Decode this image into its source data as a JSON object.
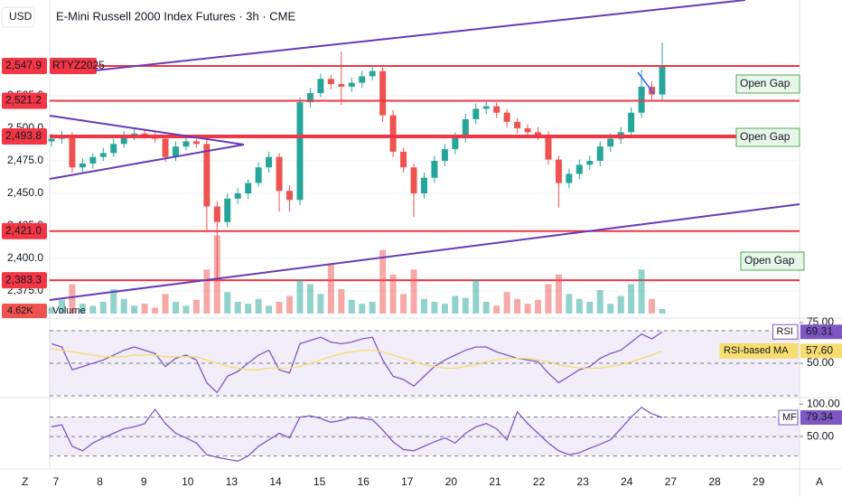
{
  "header": {
    "currency": "USD",
    "title": "E-Mini Russell 2000 Index Futures · 3h · CME"
  },
  "toolbar": {
    "left": "Z",
    "right": "A"
  },
  "time_axis": {
    "labels": [
      "7",
      "8",
      "9",
      "10",
      "13",
      "14",
      "15",
      "16",
      "17",
      "20",
      "21",
      "22",
      "23",
      "24",
      "27",
      "28",
      "29"
    ]
  },
  "chart_data": [
    {
      "type": "candlestick",
      "symbol": "RTYZ2025",
      "up_color": "#26a69a",
      "down_color": "#ef5350",
      "open": [
        2490,
        2492,
        2494,
        2470,
        2473,
        2478,
        2481,
        2488,
        2494,
        2496,
        2495,
        2492,
        2478,
        2486,
        2490,
        2488,
        2440,
        2428,
        2446,
        2450,
        2458,
        2470,
        2478,
        2452,
        2445,
        2520,
        2527,
        2538,
        2534,
        2532,
        2535,
        2540,
        2544,
        2510,
        2482,
        2470,
        2450,
        2462,
        2475,
        2484,
        2493,
        2507,
        2515,
        2517,
        2512,
        2505,
        2500,
        2497,
        2495,
        2476,
        2458,
        2465,
        2472,
        2475,
        2486,
        2492,
        2497,
        2512,
        2532,
        2526
      ],
      "high": [
        2496,
        2498,
        2497,
        2477,
        2481,
        2485,
        2492,
        2498,
        2500,
        2499,
        2498,
        2495,
        2490,
        2494,
        2493,
        2491,
        2444,
        2450,
        2454,
        2461,
        2474,
        2482,
        2481,
        2456,
        2524,
        2531,
        2542,
        2541,
        2559,
        2539,
        2544,
        2548,
        2547,
        2514,
        2485,
        2473,
        2466,
        2479,
        2488,
        2497,
        2511,
        2519,
        2521,
        2520,
        2515,
        2508,
        2503,
        2501,
        2498,
        2479,
        2469,
        2476,
        2479,
        2490,
        2496,
        2501,
        2516,
        2545,
        2536,
        2566
      ],
      "low": [
        2486,
        2488,
        2466,
        2466,
        2469,
        2475,
        2478,
        2485,
        2491,
        2492,
        2489,
        2474,
        2475,
        2483,
        2485,
        2420,
        2383,
        2424,
        2442,
        2446,
        2455,
        2466,
        2436,
        2436,
        2441,
        2516,
        2524,
        2530,
        2518,
        2528,
        2531,
        2537,
        2505,
        2478,
        2466,
        2432,
        2446,
        2458,
        2471,
        2480,
        2489,
        2503,
        2511,
        2508,
        2501,
        2496,
        2493,
        2491,
        2472,
        2439,
        2454,
        2461,
        2468,
        2471,
        2482,
        2488,
        2493,
        2508,
        2522,
        2522
      ],
      "close": [
        2492,
        2494,
        2470,
        2473,
        2478,
        2481,
        2488,
        2494,
        2496,
        2495,
        2492,
        2478,
        2486,
        2490,
        2488,
        2440,
        2428,
        2446,
        2450,
        2458,
        2470,
        2478,
        2452,
        2445,
        2520,
        2527,
        2538,
        2534,
        2532,
        2535,
        2540,
        2544,
        2510,
        2482,
        2470,
        2450,
        2462,
        2475,
        2484,
        2493,
        2507,
        2515,
        2517,
        2512,
        2505,
        2500,
        2497,
        2495,
        2476,
        2458,
        2465,
        2472,
        2475,
        2486,
        2492,
        2497,
        2512,
        2532,
        2526,
        2548
      ],
      "ylim": [
        2355.6,
        2598.6
      ],
      "yticks": [
        {
          "value": 2525,
          "label": "2,525.0"
        },
        {
          "value": 2500,
          "label": "2,500.0"
        },
        {
          "value": 2475,
          "label": "2,475.0"
        },
        {
          "value": 2450,
          "label": "2,450.0"
        },
        {
          "value": 2425,
          "label": "2,425.0"
        },
        {
          "value": 2400,
          "label": "2,400.0"
        },
        {
          "value": 2375,
          "label": "2,375.0"
        }
      ],
      "grid": true,
      "levels": [
        {
          "value": 2547.9,
          "label": "2,547.9",
          "line_width": 2
        },
        {
          "value": 2521.2,
          "label": "2,521.2",
          "line_width": 2
        },
        {
          "value": 2493.8,
          "label": "2,493.8",
          "line_width": 4
        },
        {
          "value": 2421.0,
          "label": "2,421.0",
          "line_width": 2
        },
        {
          "value": 2383.3,
          "label": "2,383.3",
          "line_width": 2
        }
      ],
      "level_color": "#f23645",
      "annotations": [
        "Open Gap",
        "Open Gap",
        "Open Gap"
      ]
    },
    {
      "type": "bar",
      "title": "Volume",
      "up_color": "#26a69a80",
      "down_color": "#ef535080",
      "values": [
        6,
        14,
        30,
        10,
        8,
        12,
        25,
        15,
        8,
        10,
        6,
        20,
        12,
        8,
        14,
        45,
        80,
        22,
        12,
        10,
        15,
        8,
        12,
        18,
        35,
        30,
        20,
        50,
        25,
        14,
        10,
        12,
        65,
        40,
        20,
        45,
        15,
        12,
        10,
        18,
        16,
        35,
        12,
        8,
        22,
        15,
        10,
        14,
        30,
        40,
        20,
        15,
        12,
        24,
        10,
        18,
        30,
        45,
        15,
        4.62
      ],
      "value_labels": [
        null,
        null,
        null,
        null,
        null,
        null,
        null,
        null,
        null,
        null,
        null,
        null,
        null,
        null,
        null,
        null,
        null,
        null,
        null,
        null,
        null,
        null,
        null,
        null,
        null,
        null,
        null,
        null,
        null,
        null,
        null,
        null,
        null,
        null,
        null,
        null,
        null,
        null,
        null,
        null,
        null,
        null,
        null,
        null,
        null,
        null,
        null,
        null,
        null,
        null,
        null,
        null,
        null,
        null,
        null,
        null,
        null,
        null,
        null,
        "4.62K"
      ],
      "ylim": [
        0,
        85
      ]
    },
    {
      "type": "line",
      "series": [
        {
          "name": "RSI",
          "color": "#7e57c2",
          "values": [
            62,
            60,
            46,
            48,
            50,
            52,
            55,
            58,
            60,
            58,
            56,
            48,
            53,
            55,
            52,
            38,
            32,
            42,
            45,
            50,
            55,
            58,
            46,
            44,
            62,
            64,
            66,
            63,
            62,
            63,
            65,
            66,
            52,
            42,
            40,
            36,
            42,
            48,
            52,
            55,
            58,
            60,
            60,
            57,
            55,
            53,
            52,
            51,
            44,
            38,
            42,
            46,
            48,
            53,
            56,
            58,
            63,
            68,
            65,
            69.31
          ]
        },
        {
          "name": "RSI-based MA",
          "color": "#f7dc6f",
          "values": [
            59,
            58,
            57,
            56,
            55,
            54,
            54,
            54,
            55,
            55,
            55,
            54,
            54,
            54,
            54,
            52,
            50,
            48,
            47,
            46,
            46,
            47,
            47,
            47,
            48,
            50,
            52,
            54,
            56,
            57,
            58,
            58,
            57,
            55,
            53,
            51,
            49,
            48,
            47,
            47,
            48,
            49,
            51,
            52,
            53,
            53,
            53,
            52,
            51,
            49,
            48,
            47,
            47,
            47,
            48,
            49,
            51,
            53,
            55,
            57.6
          ],
          "value_labels": [
            null,
            null,
            null,
            null,
            null,
            null,
            null,
            null,
            null,
            null,
            null,
            null,
            null,
            null,
            null,
            null,
            null,
            null,
            null,
            null,
            null,
            null,
            null,
            null,
            null,
            null,
            null,
            null,
            null,
            null,
            null,
            null,
            null,
            null,
            null,
            null,
            null,
            null,
            null,
            null,
            null,
            null,
            null,
            null,
            null,
            null,
            null,
            null,
            null,
            null,
            null,
            null,
            null,
            null,
            null,
            null,
            null,
            null,
            null,
            "57.60"
          ]
        }
      ],
      "ylim": [
        28.9,
        76.1
      ],
      "yticks": [
        {
          "value": 75,
          "label": "75.00"
        },
        {
          "value": 50,
          "label": "50.00"
        }
      ],
      "levels": [
        70,
        50,
        30
      ]
    },
    {
      "type": "line",
      "series": [
        {
          "name": "MF",
          "color": "#7e57c2",
          "values": [
            65,
            68,
            35,
            28,
            40,
            48,
            55,
            62,
            65,
            70,
            92,
            70,
            55,
            48,
            40,
            22,
            18,
            15,
            12,
            20,
            35,
            45,
            55,
            48,
            80,
            82,
            78,
            72,
            75,
            80,
            78,
            76,
            60,
            42,
            30,
            28,
            35,
            42,
            48,
            40,
            55,
            65,
            70,
            62,
            45,
            88,
            70,
            55,
            40,
            28,
            22,
            25,
            32,
            38,
            45,
            62,
            80,
            95,
            85,
            79.34
          ]
        }
      ],
      "ylim": [
        0,
        110
      ],
      "yticks": [
        {
          "value": 100,
          "label": "100.00"
        },
        {
          "value": 50,
          "label": "50.00"
        }
      ],
      "levels": [
        80,
        50,
        20
      ]
    }
  ]
}
